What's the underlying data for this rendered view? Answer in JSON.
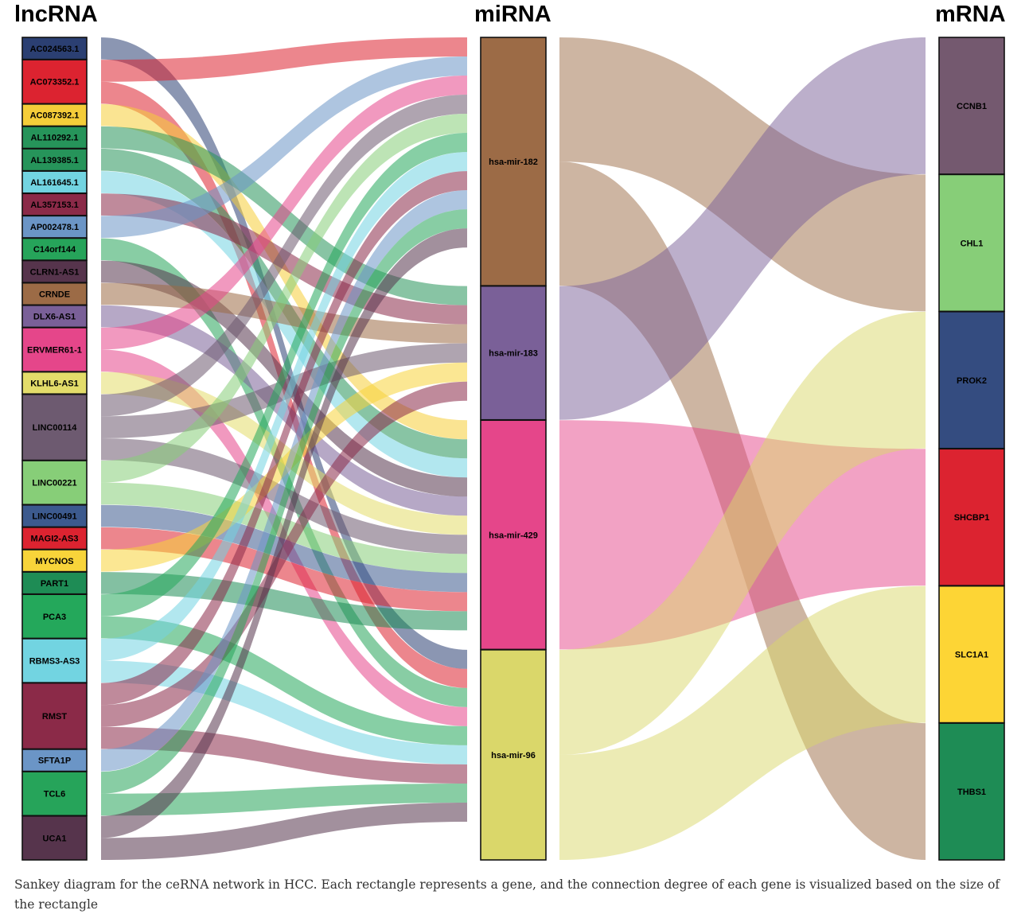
{
  "columns": {
    "lncrna": "lncRNA",
    "mirna": "miRNA",
    "mrna": "mRNA"
  },
  "caption": "Sankey diagram for the ceRNA network in HCC. Each rectangle represents a gene, and the connection degree of each gene is visualized based on the size of the rectangle",
  "lncrna_nodes": [
    {
      "name": "AC024563.1",
      "color": "#2b3f72"
    },
    {
      "name": "AC073352.1",
      "color": "#dc2330"
    },
    {
      "name": "AC087392.1",
      "color": "#f5cd39"
    },
    {
      "name": "AL110292.1",
      "color": "#26945a"
    },
    {
      "name": "AL139385.1",
      "color": "#26945a"
    },
    {
      "name": "AL161645.1",
      "color": "#72d4e1"
    },
    {
      "name": "AL357153.1",
      "color": "#8b2a48"
    },
    {
      "name": "AP002478.1",
      "color": "#6b95c6"
    },
    {
      "name": "C14orf144",
      "color": "#26a45a"
    },
    {
      "name": "CLRN1-AS1",
      "color": "#56344c"
    },
    {
      "name": "CRNDE",
      "color": "#9c6b46"
    },
    {
      "name": "DLX6-AS1",
      "color": "#7a6098"
    },
    {
      "name": "ERVMER61-1",
      "color": "#e5468a"
    },
    {
      "name": "KLHL6-AS1",
      "color": "#e3dc6a"
    },
    {
      "name": "LINC00114",
      "color": "#6d5a70"
    },
    {
      "name": "LINC00221",
      "color": "#87ce78"
    },
    {
      "name": "LINC00491",
      "color": "#3c5a8e"
    },
    {
      "name": "MAGI2-AS3",
      "color": "#dc2330"
    },
    {
      "name": "MYCNOS",
      "color": "#f8d43a"
    },
    {
      "name": "PART1",
      "color": "#1e8c55"
    },
    {
      "name": "PCA3",
      "color": "#24a85b"
    },
    {
      "name": "RBMS3-AS3",
      "color": "#72d4e1"
    },
    {
      "name": "RMST",
      "color": "#8b2a48"
    },
    {
      "name": "SFTA1P",
      "color": "#6b95c6"
    },
    {
      "name": "TCL6",
      "color": "#26a45a"
    },
    {
      "name": "UCA1",
      "color": "#56344c"
    }
  ],
  "mirna_nodes": [
    {
      "name": "hsa-mir-182",
      "color": "#9c6b46"
    },
    {
      "name": "hsa-mir-183",
      "color": "#7a6098"
    },
    {
      "name": "hsa-mir-429",
      "color": "#e5468a"
    },
    {
      "name": "hsa-mir-96",
      "color": "#dad76a"
    }
  ],
  "mrna_nodes": [
    {
      "name": "CCNB1",
      "color": "#74596f"
    },
    {
      "name": "CHL1",
      "color": "#87ce78"
    },
    {
      "name": "PROK2",
      "color": "#344c80"
    },
    {
      "name": "SHCBP1",
      "color": "#dc2330"
    },
    {
      "name": "SLC1A1",
      "color": "#fdd535"
    },
    {
      "name": "THBS1",
      "color": "#1e8c55"
    }
  ],
  "lnc_mir_links": [
    {
      "source": "AC024563.1",
      "target": "hsa-mir-96"
    },
    {
      "source": "AC073352.1",
      "target": "hsa-mir-182"
    },
    {
      "source": "AC073352.1",
      "target": "hsa-mir-96"
    },
    {
      "source": "AC087392.1",
      "target": "hsa-mir-429"
    },
    {
      "source": "AL110292.1",
      "target": "hsa-mir-183"
    },
    {
      "source": "AL139385.1",
      "target": "hsa-mir-429"
    },
    {
      "source": "AL161645.1",
      "target": "hsa-mir-429"
    },
    {
      "source": "AL357153.1",
      "target": "hsa-mir-183"
    },
    {
      "source": "AP002478.1",
      "target": "hsa-mir-182"
    },
    {
      "source": "C14orf144",
      "target": "hsa-mir-96"
    },
    {
      "source": "CLRN1-AS1",
      "target": "hsa-mir-429"
    },
    {
      "source": "CRNDE",
      "target": "hsa-mir-183"
    },
    {
      "source": "DLX6-AS1",
      "target": "hsa-mir-429"
    },
    {
      "source": "ERVMER61-1",
      "target": "hsa-mir-182"
    },
    {
      "source": "ERVMER61-1",
      "target": "hsa-mir-96"
    },
    {
      "source": "KLHL6-AS1",
      "target": "hsa-mir-429"
    },
    {
      "source": "LINC00114",
      "target": "hsa-mir-182"
    },
    {
      "source": "LINC00114",
      "target": "hsa-mir-183"
    },
    {
      "source": "LINC00114",
      "target": "hsa-mir-429"
    },
    {
      "source": "LINC00221",
      "target": "hsa-mir-182"
    },
    {
      "source": "LINC00221",
      "target": "hsa-mir-429"
    },
    {
      "source": "LINC00491",
      "target": "hsa-mir-429"
    },
    {
      "source": "MAGI2-AS3",
      "target": "hsa-mir-429"
    },
    {
      "source": "MYCNOS",
      "target": "hsa-mir-183"
    },
    {
      "source": "PART1",
      "target": "hsa-mir-429"
    },
    {
      "source": "PCA3",
      "target": "hsa-mir-182"
    },
    {
      "source": "PCA3",
      "target": "hsa-mir-96"
    },
    {
      "source": "RBMS3-AS3",
      "target": "hsa-mir-182"
    },
    {
      "source": "RBMS3-AS3",
      "target": "hsa-mir-96"
    },
    {
      "source": "RMST",
      "target": "hsa-mir-182"
    },
    {
      "source": "RMST",
      "target": "hsa-mir-183"
    },
    {
      "source": "RMST",
      "target": "hsa-mir-96"
    },
    {
      "source": "SFTA1P",
      "target": "hsa-mir-182"
    },
    {
      "source": "TCL6",
      "target": "hsa-mir-182"
    },
    {
      "source": "TCL6",
      "target": "hsa-mir-96"
    },
    {
      "source": "UCA1",
      "target": "hsa-mir-182"
    },
    {
      "source": "UCA1",
      "target": "hsa-mir-96"
    }
  ],
  "mir_mrna_links": [
    {
      "source": "hsa-mir-182",
      "target": "CHL1"
    },
    {
      "source": "hsa-mir-182",
      "target": "THBS1"
    },
    {
      "source": "hsa-mir-183",
      "target": "CCNB1"
    },
    {
      "source": "hsa-mir-429",
      "target": "SHCBP1"
    },
    {
      "source": "hsa-mir-96",
      "target": "PROK2"
    },
    {
      "source": "hsa-mir-96",
      "target": "SLC1A1"
    }
  ]
}
